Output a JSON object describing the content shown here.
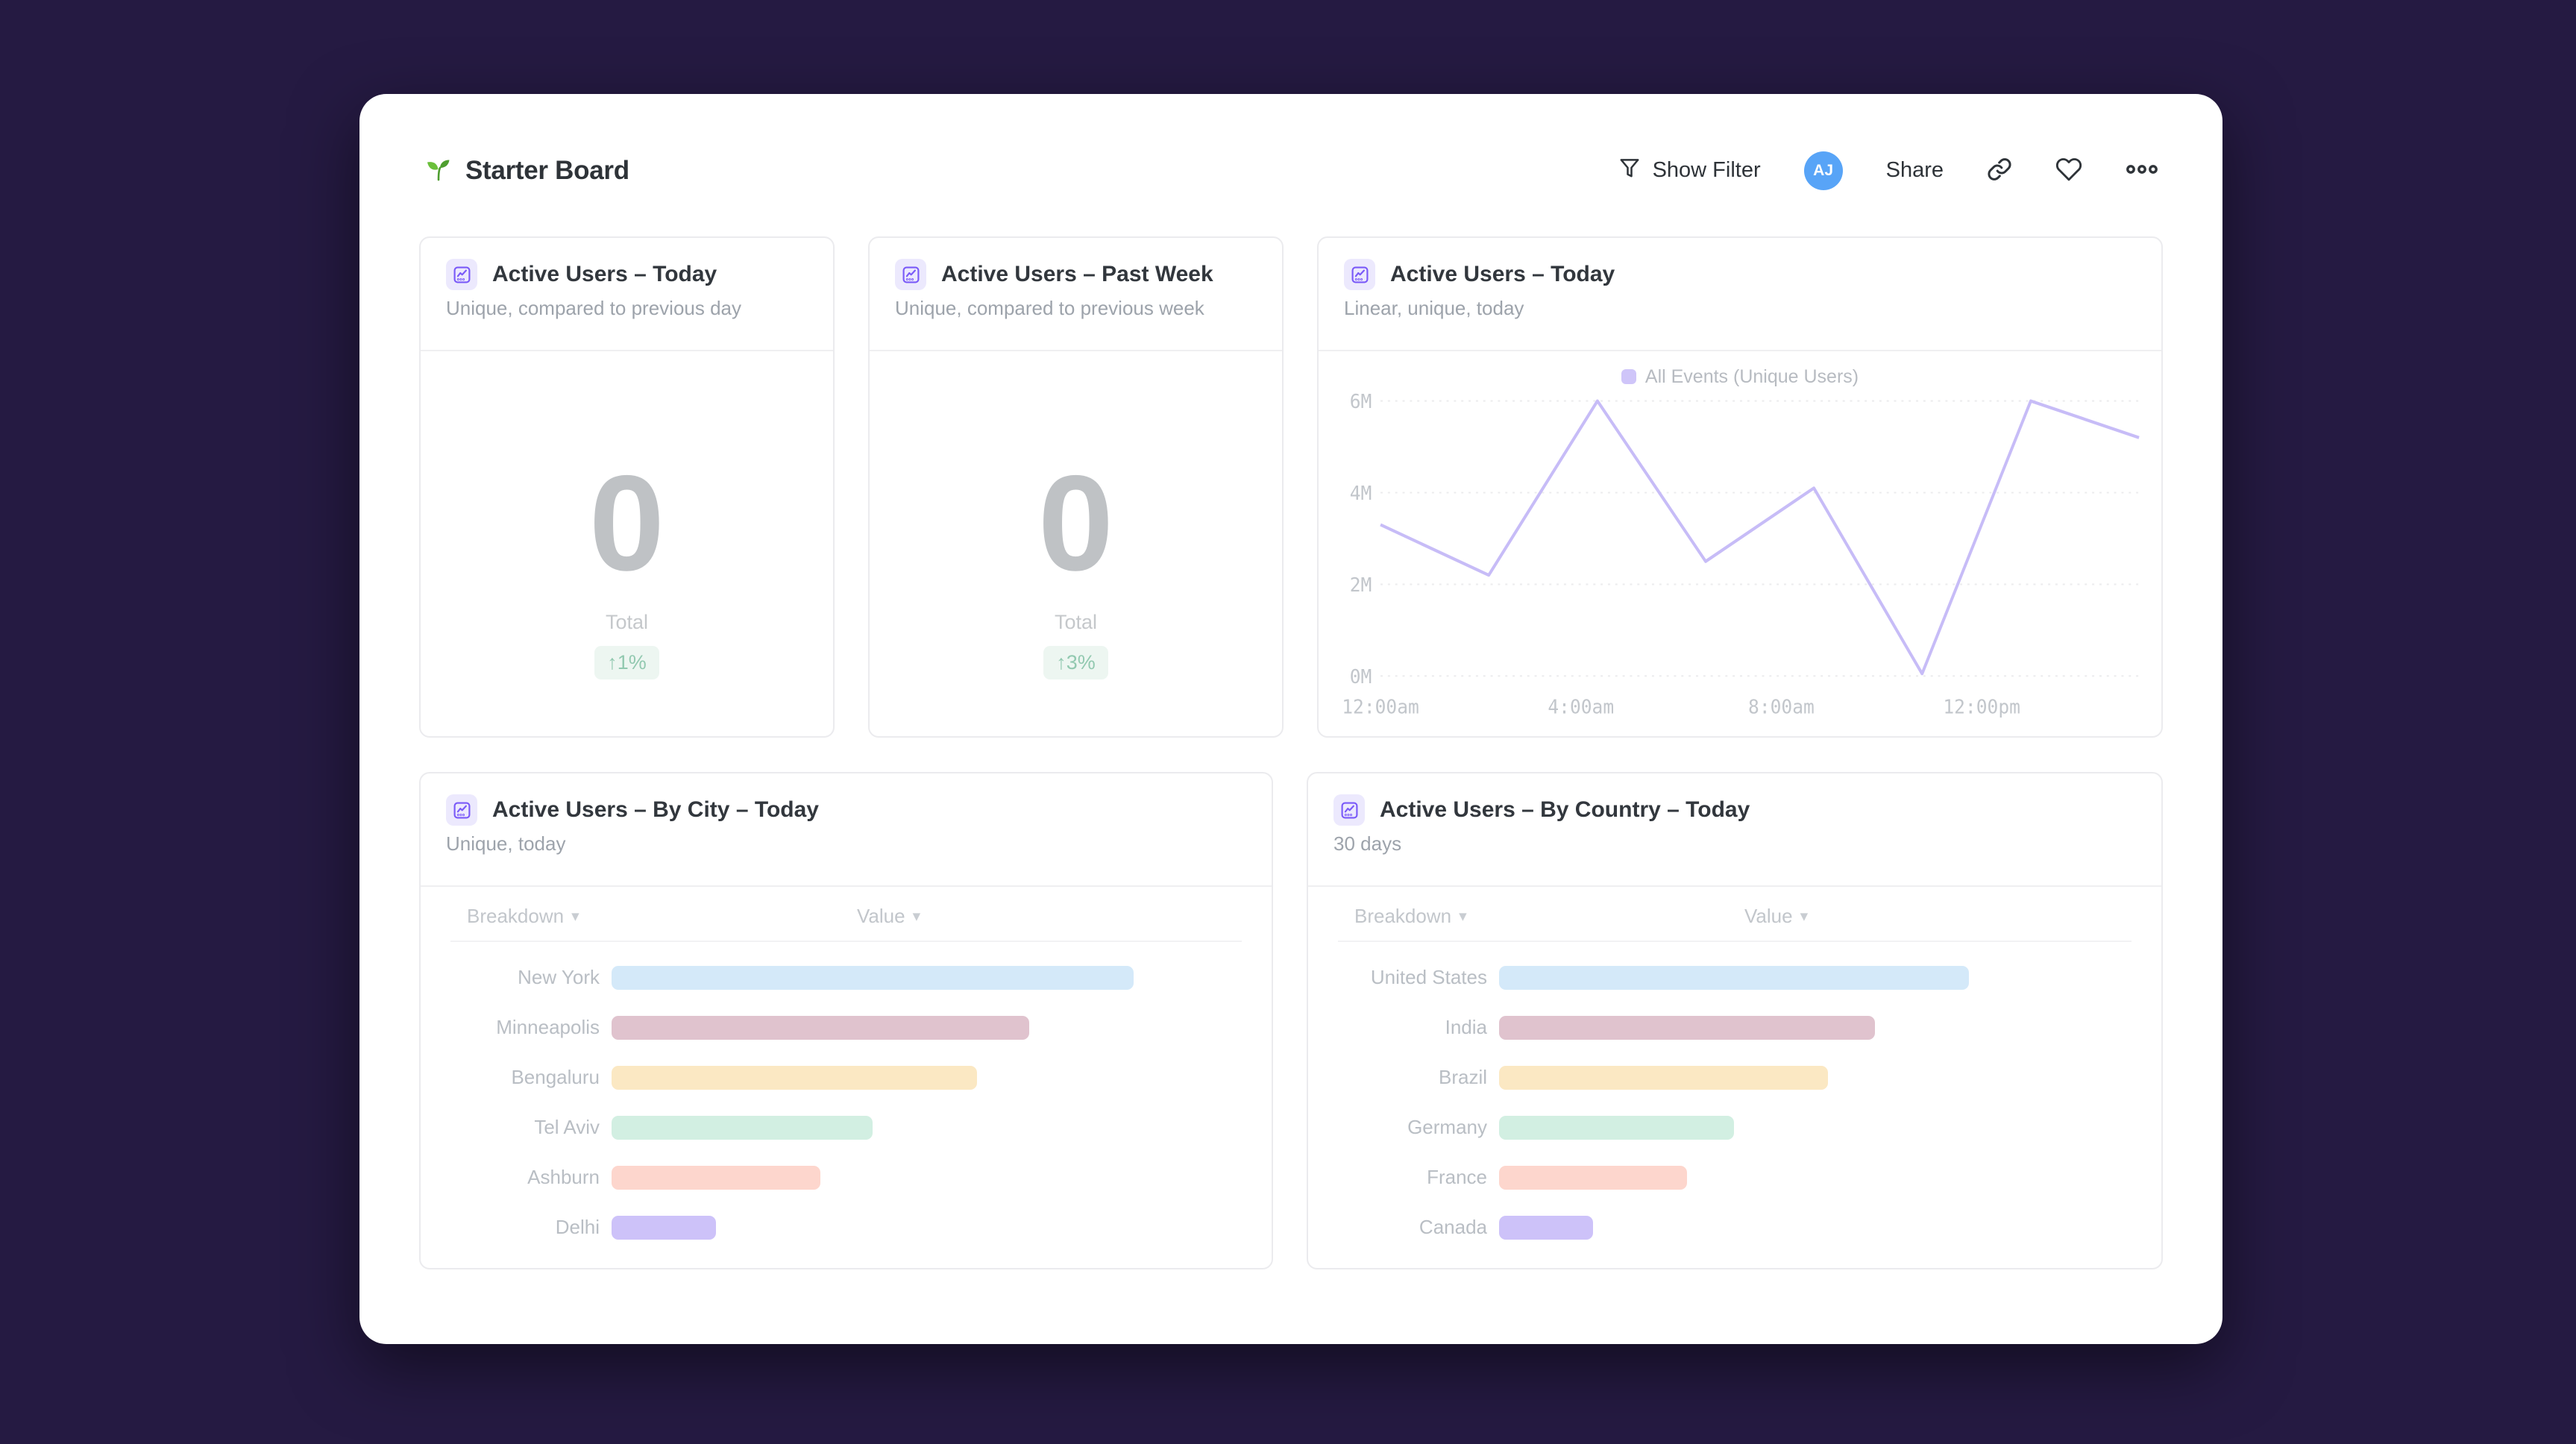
{
  "header": {
    "title": "Starter Board",
    "show_filter_label": "Show Filter",
    "avatar_initials": "AJ",
    "share_label": "Share"
  },
  "colors": {
    "background": "#251a42",
    "accent_purple": "#7a5af8",
    "avatar_blue": "#58a4f7",
    "line_purple": "#c7bcf7",
    "badge_green_text": "#92c9b0",
    "badge_green_bg": "#edf6f1"
  },
  "cards": {
    "today": {
      "title": "Active Users – Today",
      "subtitle": "Unique, compared to previous day",
      "value": "0",
      "value_label": "Total",
      "delta": "↑1%"
    },
    "past_week": {
      "title": "Active Users – Past Week",
      "subtitle": "Unique, compared to previous week",
      "value": "0",
      "value_label": "Total",
      "delta": "↑3%"
    },
    "today_chart": {
      "title": "Active Users – Today",
      "subtitle": "Linear, unique, today",
      "legend": "All Events (Unique Users)"
    },
    "by_city": {
      "title": "Active Users – By City – Today",
      "subtitle": "Unique, today",
      "col_breakdown": "Breakdown",
      "col_value": "Value",
      "caret": "▾",
      "rows": [
        {
          "label": "New York",
          "pct": 100,
          "color": "#d4e9f9"
        },
        {
          "label": "Minneapolis",
          "pct": 80,
          "color": "#e0c3ce"
        },
        {
          "label": "Bengaluru",
          "pct": 70,
          "color": "#fbe8c3"
        },
        {
          "label": "Tel Aviv",
          "pct": 50,
          "color": "#d2efe2"
        },
        {
          "label": "Ashburn",
          "pct": 40,
          "color": "#fdd6cd"
        },
        {
          "label": "Delhi",
          "pct": 20,
          "color": "#cdc2f9"
        }
      ]
    },
    "by_country": {
      "title": "Active Users – By Country – Today",
      "subtitle": "30 days",
      "col_breakdown": "Breakdown",
      "col_value": "Value",
      "caret": "▾",
      "rows": [
        {
          "label": "United States",
          "pct": 100,
          "color": "#d4e9f9"
        },
        {
          "label": "India",
          "pct": 80,
          "color": "#e0c3ce"
        },
        {
          "label": "Brazil",
          "pct": 70,
          "color": "#fbe8c3"
        },
        {
          "label": "Germany",
          "pct": 50,
          "color": "#d2efe2"
        },
        {
          "label": "France",
          "pct": 40,
          "color": "#fdd6cd"
        },
        {
          "label": "Canada",
          "pct": 20,
          "color": "#cdc2f9"
        }
      ]
    }
  },
  "chart_data": [
    {
      "type": "line",
      "title": "Active Users – Today",
      "legend": [
        "All Events (Unique Users)"
      ],
      "x_hours": [
        0,
        2.16,
        4.33,
        6.49,
        8.65,
        10.81,
        12.98,
        15.14
      ],
      "values_m": [
        3.3,
        2.2,
        6.0,
        2.5,
        4.1,
        0.05,
        6.0,
        5.2
      ],
      "x_max_hours": 15.14,
      "ylim": [
        0,
        6
      ],
      "y_ticks": [
        {
          "label": "6M",
          "value": 6
        },
        {
          "label": "4M",
          "value": 4
        },
        {
          "label": "2M",
          "value": 2
        },
        {
          "label": "0M",
          "value": 0
        }
      ],
      "x_ticks": [
        {
          "label": "12:00am",
          "hour": 0
        },
        {
          "label": "4:00am",
          "hour": 4
        },
        {
          "label": "8:00am",
          "hour": 8
        },
        {
          "label": "12:00pm",
          "hour": 12
        }
      ],
      "line_color": "#c7bcf7",
      "grid": true,
      "legend_position": "top-center"
    },
    {
      "type": "bar",
      "title": "Active Users – By City – Today",
      "categories": [
        "New York",
        "Minneapolis",
        "Bengaluru",
        "Tel Aviv",
        "Ashburn",
        "Delhi"
      ],
      "values_pct_of_max": [
        100,
        80,
        70,
        50,
        40,
        20
      ]
    },
    {
      "type": "bar",
      "title": "Active Users – By Country – Today",
      "categories": [
        "United States",
        "India",
        "Brazil",
        "Germany",
        "France",
        "Canada"
      ],
      "values_pct_of_max": [
        100,
        80,
        70,
        50,
        40,
        20
      ]
    }
  ]
}
